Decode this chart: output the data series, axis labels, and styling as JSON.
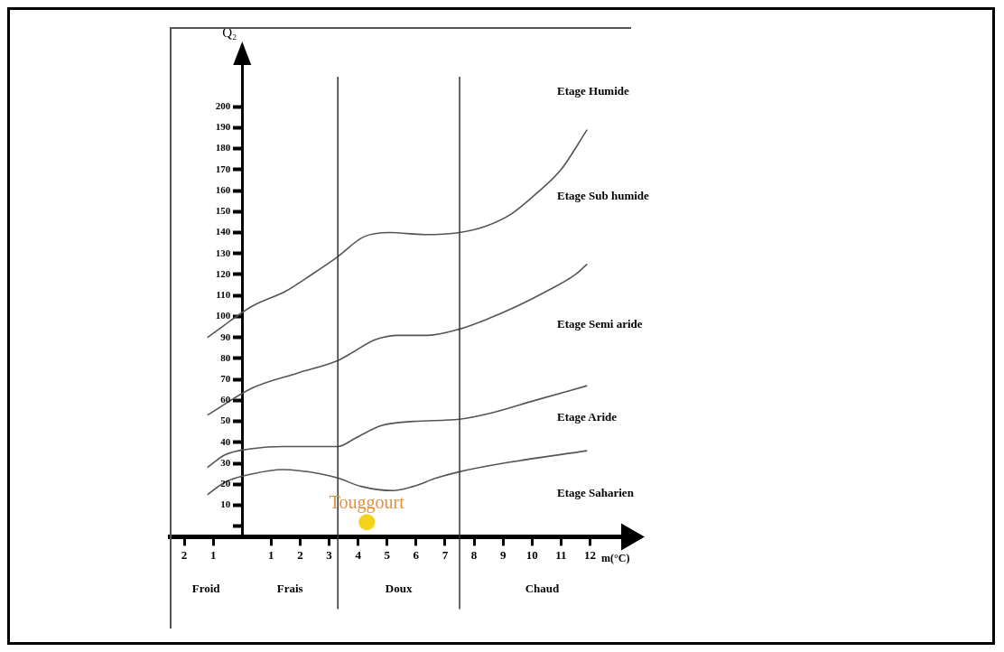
{
  "chart_data": {
    "type": "line",
    "xlabel": "m(°C)",
    "ylabel": "Q₂",
    "xlim": [
      -2.5,
      13.2
    ],
    "ylim": [
      -5,
      225
    ],
    "xticks": [
      {
        "value": -2,
        "label": "2"
      },
      {
        "value": -1,
        "label": "1"
      },
      1,
      2,
      3,
      4,
      5,
      6,
      7,
      8,
      9,
      10,
      11,
      12
    ],
    "yticks": [
      {
        "value": 0,
        "label": null
      },
      10,
      20,
      30,
      40,
      50,
      60,
      70,
      80,
      90,
      100,
      110,
      120,
      130,
      140,
      150,
      160,
      170,
      180,
      190,
      200
    ],
    "grid": false,
    "legend": false,
    "marker": "none",
    "line_style": "solid",
    "series": [
      {
        "color": "#555555",
        "x": [
          -1.2,
          0.36,
          1.5,
          2.4,
          3.25,
          4.2,
          5.1,
          6.3,
          7.5,
          8.4,
          9.3,
          10.1,
          11,
          11.9
        ],
        "values": [
          90,
          105,
          112,
          120,
          128,
          138,
          140,
          139,
          140,
          143,
          149,
          158,
          170,
          189
        ]
      },
      {
        "color": "#555555",
        "x": [
          -1.2,
          0.36,
          1.9,
          3.3,
          3.7,
          4.6,
          5.4,
          6.4,
          7.5,
          8.5,
          9.5,
          10.5,
          11.5,
          11.9
        ],
        "values": [
          53,
          66,
          73,
          79,
          82,
          89,
          91,
          91,
          94,
          99,
          105,
          112,
          120,
          125
        ]
      },
      {
        "color": "#555555",
        "x": [
          -1.2,
          -0.6,
          0.36,
          1.4,
          3.3,
          3.9,
          4.8,
          5.9,
          7.5,
          8.6,
          10.1,
          11.9
        ],
        "values": [
          28,
          34,
          37,
          38,
          38,
          42,
          48,
          50,
          51,
          54,
          60,
          67
        ]
      },
      {
        "color": "#555555",
        "x": [
          -1.2,
          -0.6,
          0.36,
          1.4,
          2.7,
          3.3,
          4.1,
          5.2,
          5.9,
          6.7,
          7.5,
          9,
          11.9
        ],
        "values": [
          15,
          21,
          25,
          27,
          25,
          23,
          19,
          17,
          19,
          23,
          26,
          30,
          36
        ]
      },
      {
        "type": "scatter",
        "marker": "circle",
        "name": "Touggourt",
        "color": "#f2d21b",
        "x": [
          4.3
        ],
        "values": [
          2
        ]
      }
    ],
    "ref_lines": [
      {
        "axis": "x",
        "value": 3.3,
        "color": "#333333"
      },
      {
        "axis": "x",
        "value": 7.5,
        "color": "#333333"
      }
    ],
    "annotations": [
      "Etage Humide",
      "Etage Sub humide",
      "Etage Semi aride",
      "Etage Aride",
      "Etage Saharien",
      "Froid",
      "Frais",
      "Doux",
      "Chaud"
    ]
  }
}
